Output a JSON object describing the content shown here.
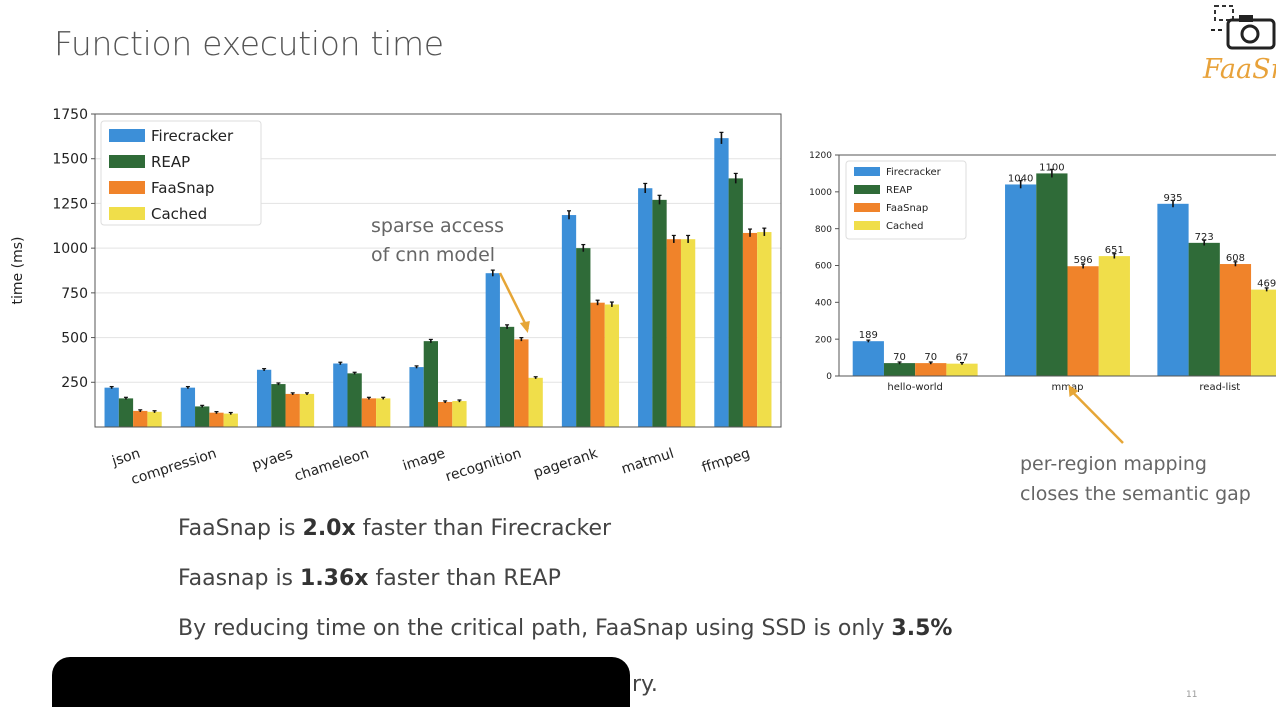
{
  "slide": {
    "title": "Function execution time",
    "logo_text": "FaaSnap",
    "bullets": [
      {
        "pre": "FaaSnap is ",
        "bold": "2.0x",
        "post": " faster than Firecracker"
      },
      {
        "pre": "Faasnap is ",
        "bold": "1.36x",
        "post": " faster than REAP"
      },
      {
        "pre": "By reducing time on the critical path, FaaSnap using SSD is only ",
        "bold": "3.5%",
        "post": ""
      }
    ],
    "tail_text": "ry.",
    "page_number": "11"
  },
  "colors": {
    "Firecracker": "#3c8fd8",
    "REAP": "#2f6b38",
    "FaaSnap": "#f0832a",
    "Cached": "#f0de4a",
    "annotation": "#e6a637"
  },
  "chart_data": [
    {
      "type": "bar",
      "ylabel": "time (ms)",
      "xlabel": "",
      "ylim": [
        0,
        1750
      ],
      "yticks": [
        250,
        500,
        750,
        1000,
        1250,
        1500,
        1750
      ],
      "grid": true,
      "legend": "top-left",
      "categories": [
        "json",
        "compression",
        "pyaes",
        "chameleon",
        "image",
        "recognition",
        "pagerank",
        "matmul",
        "ffmpeg"
      ],
      "series": [
        {
          "name": "Firecracker",
          "values": [
            220,
            220,
            320,
            355,
            335,
            860,
            1185,
            1335,
            1615
          ]
        },
        {
          "name": "REAP",
          "values": [
            160,
            115,
            240,
            300,
            480,
            560,
            1000,
            1270,
            1390
          ]
        },
        {
          "name": "FaaSnap",
          "values": [
            90,
            80,
            185,
            160,
            140,
            490,
            695,
            1050,
            1085
          ]
        },
        {
          "name": "Cached",
          "values": [
            85,
            75,
            185,
            160,
            145,
            275,
            685,
            1050,
            1090
          ]
        }
      ],
      "annotation": {
        "text_lines": [
          "sparse access",
          "of cnn model"
        ],
        "target_category": "recognition"
      }
    },
    {
      "type": "bar",
      "ylabel": "",
      "xlabel": "",
      "ylim": [
        0,
        1200
      ],
      "yticks": [
        0,
        200,
        400,
        600,
        800,
        1000,
        1200
      ],
      "grid": false,
      "legend": "top-left",
      "categories": [
        "hello-world",
        "mmap",
        "read-list"
      ],
      "series": [
        {
          "name": "Firecracker",
          "values": [
            189,
            1040,
            935
          ]
        },
        {
          "name": "REAP",
          "values": [
            70,
            1100,
            723
          ]
        },
        {
          "name": "FaaSnap",
          "values": [
            70,
            596,
            608
          ]
        },
        {
          "name": "Cached",
          "values": [
            67,
            651,
            469
          ]
        }
      ],
      "data_labels": [
        [
          "189",
          "1040",
          "935"
        ],
        [
          "70",
          "1100",
          "723"
        ],
        [
          "70",
          "596",
          "608"
        ],
        [
          "67",
          "651",
          "469"
        ]
      ],
      "annotation": {
        "text_lines": [
          "per-region mapping",
          "closes the semantic gap"
        ],
        "target_category": "mmap"
      }
    }
  ]
}
